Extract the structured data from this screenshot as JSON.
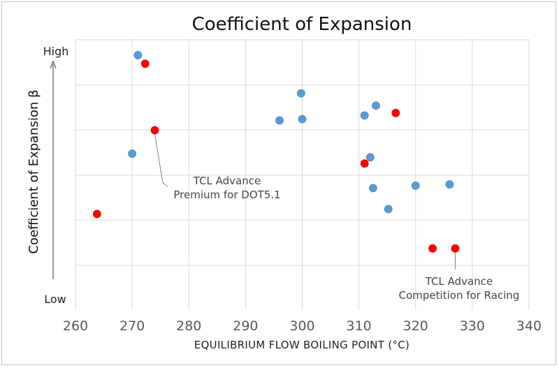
{
  "chart_data": {
    "type": "scatter",
    "title": "Coefficient of Expansion",
    "xlabel": "EQUILIBRIUM FLOW BOILING POINT (°C)",
    "ylabel": "Coefficient of Expansion β",
    "y_high_label": "High",
    "y_low_label": "Low",
    "xlim": [
      260,
      340
    ],
    "ylim": [
      0,
      11
    ],
    "x_ticks": [
      "260",
      "270",
      "280",
      "290",
      "300",
      "310",
      "320",
      "330",
      "340"
    ],
    "grid": true,
    "legend": "none",
    "colors": {
      "blue": "#5b9bd5",
      "red": "#ff0000"
    },
    "series": [
      {
        "color": "#5b9bd5",
        "points": [
          {
            "x": 271,
            "y": 10.35
          },
          {
            "x": 270,
            "y": 6.35
          },
          {
            "x": 296,
            "y": 7.7
          },
          {
            "x": 299.8,
            "y": 8.8
          },
          {
            "x": 300,
            "y": 7.75
          },
          {
            "x": 311,
            "y": 7.9
          },
          {
            "x": 313,
            "y": 8.3
          },
          {
            "x": 312,
            "y": 6.2
          },
          {
            "x": 312.5,
            "y": 4.95
          },
          {
            "x": 315.2,
            "y": 4.1
          },
          {
            "x": 320,
            "y": 5.05
          },
          {
            "x": 326,
            "y": 5.1
          }
        ]
      },
      {
        "color": "#ff0000",
        "points": [
          {
            "x": 272.3,
            "y": 10.0
          },
          {
            "x": 274,
            "y": 7.3
          },
          {
            "x": 263.8,
            "y": 3.9
          },
          {
            "x": 316.5,
            "y": 8.0
          },
          {
            "x": 311,
            "y": 5.95
          },
          {
            "x": 323,
            "y": 2.5
          },
          {
            "x": 327,
            "y": 2.5
          }
        ]
      }
    ],
    "annotations": [
      {
        "lines": [
          "TCL Advance",
          "Premium for DOT5.1"
        ],
        "target": {
          "x": 274,
          "y": 7.3
        }
      },
      {
        "lines": [
          "TCL Advance",
          "Competition for Racing"
        ],
        "target": {
          "x": 327,
          "y": 2.5
        }
      }
    ]
  }
}
